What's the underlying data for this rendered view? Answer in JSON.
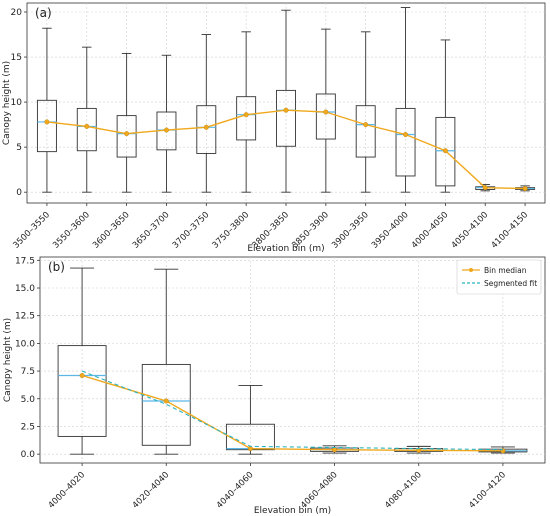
{
  "chart_data": [
    {
      "panel_label": "(a)",
      "type": "box",
      "xlabel": "Elevation bin (m)",
      "ylabel": "Canopy height (m)",
      "ylim": [
        -1.2,
        21
      ],
      "yticks": [
        0,
        5,
        10,
        15,
        20
      ],
      "grid": true,
      "categories": [
        "3500–3550",
        "3550–3600",
        "3600–3650",
        "3650–3700",
        "3700–3750",
        "3750–3800",
        "3800–3850",
        "3850–3900",
        "3900–3950",
        "3950–4000",
        "4000–4050",
        "4050–4100",
        "4100–4150"
      ],
      "boxes": [
        {
          "whisker_low": 0,
          "q1": 4.5,
          "median": 7.8,
          "q3": 10.2,
          "whisker_high": 18.2
        },
        {
          "whisker_low": 0,
          "q1": 4.6,
          "median": 7.3,
          "q3": 9.3,
          "whisker_high": 16.1
        },
        {
          "whisker_low": 0,
          "q1": 3.9,
          "median": 6.5,
          "q3": 8.5,
          "whisker_high": 15.4
        },
        {
          "whisker_low": 0,
          "q1": 4.7,
          "median": 6.9,
          "q3": 8.9,
          "whisker_high": 15.2
        },
        {
          "whisker_low": 0,
          "q1": 4.3,
          "median": 7.2,
          "q3": 9.6,
          "whisker_high": 17.5
        },
        {
          "whisker_low": 0,
          "q1": 5.8,
          "median": 8.6,
          "q3": 10.6,
          "whisker_high": 17.8
        },
        {
          "whisker_low": 0,
          "q1": 5.1,
          "median": 9.1,
          "q3": 11.3,
          "whisker_high": 20.2
        },
        {
          "whisker_low": 0,
          "q1": 5.9,
          "median": 8.9,
          "q3": 10.9,
          "whisker_high": 18.1
        },
        {
          "whisker_low": 0,
          "q1": 3.9,
          "median": 7.5,
          "q3": 9.6,
          "whisker_high": 17.8
        },
        {
          "whisker_low": 0,
          "q1": 1.8,
          "median": 6.4,
          "q3": 9.3,
          "whisker_high": 20.5
        },
        {
          "whisker_low": 0,
          "q1": 0.7,
          "median": 4.6,
          "q3": 8.3,
          "whisker_high": 16.9
        },
        {
          "whisker_low": 0.15,
          "q1": 0.3,
          "median": 0.5,
          "q3": 0.6,
          "whisker_high": 0.85
        },
        {
          "whisker_low": 0.15,
          "q1": 0.3,
          "median": 0.4,
          "q3": 0.5,
          "whisker_high": 0.7
        }
      ],
      "series": [
        {
          "values": [
            7.8,
            7.3,
            6.5,
            6.9,
            7.2,
            8.6,
            9.1,
            8.9,
            7.5,
            6.4,
            4.6,
            0.5,
            0.4
          ],
          "color": "#f0a81c"
        }
      ]
    },
    {
      "panel_label": "(b)",
      "type": "box",
      "xlabel": "Elevation bin (m)",
      "ylabel": "Canopy height (m)",
      "ylim": [
        -0.8,
        17.8
      ],
      "yticks": [
        0.0,
        2.5,
        5.0,
        7.5,
        10.0,
        12.5,
        15.0,
        17.5
      ],
      "grid": true,
      "legend_position": "top-right",
      "categories": [
        "4000–4020",
        "4020–4040",
        "4040–4060",
        "4060–4080",
        "4080–4100",
        "4100–4120"
      ],
      "boxes": [
        {
          "whisker_low": 0,
          "q1": 1.6,
          "median": 7.1,
          "q3": 9.8,
          "whisker_high": 16.8
        },
        {
          "whisker_low": 0,
          "q1": 0.8,
          "median": 4.8,
          "q3": 8.1,
          "whisker_high": 16.7
        },
        {
          "whisker_low": 0,
          "q1": 0.4,
          "median": 0.5,
          "q3": 2.7,
          "whisker_high": 6.2
        },
        {
          "whisker_low": 0.1,
          "q1": 0.25,
          "median": 0.4,
          "q3": 0.55,
          "whisker_high": 0.75
        },
        {
          "whisker_low": 0.1,
          "q1": 0.25,
          "median": 0.35,
          "q3": 0.5,
          "whisker_high": 0.7
        },
        {
          "whisker_low": 0.1,
          "q1": 0.2,
          "median": 0.3,
          "q3": 0.45,
          "whisker_high": 0.65
        }
      ],
      "series": [
        {
          "name": "Bin median",
          "values": [
            7.1,
            4.8,
            0.5,
            0.4,
            0.35,
            0.3
          ],
          "color": "#f0a81c",
          "style": "solid"
        },
        {
          "name": "Segmented fit",
          "values": [
            7.5,
            4.5,
            0.7,
            0.6,
            0.5,
            0.4
          ],
          "color": "#2bb3c0",
          "style": "dashed"
        }
      ]
    }
  ]
}
